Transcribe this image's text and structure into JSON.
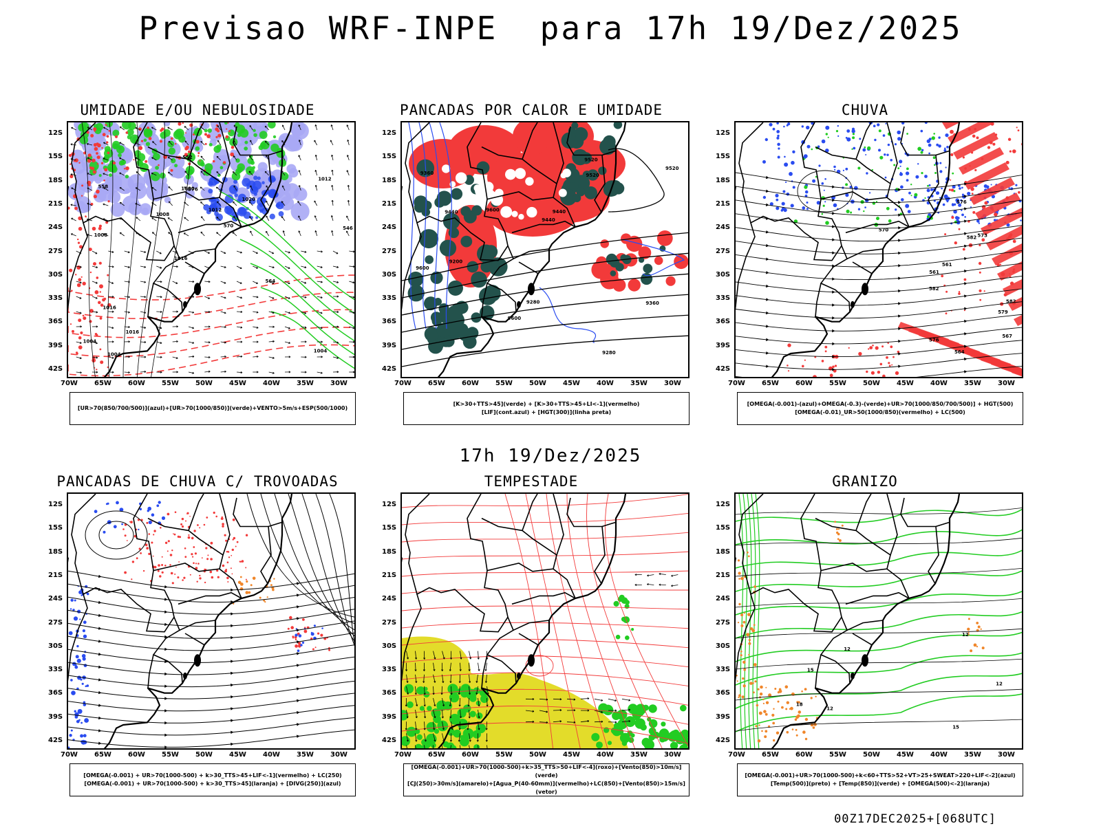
{
  "header": {
    "title": "Previsao WRF-INPE  para 17h 19/Dez/2025",
    "mid_title": "17h 19/Dez/2025",
    "footer": "00Z17DEC2025+[068UTC]"
  },
  "axes": {
    "lat_labels": [
      "12S",
      "15S",
      "18S",
      "21S",
      "24S",
      "27S",
      "30S",
      "33S",
      "36S",
      "39S",
      "42S"
    ],
    "lon_labels": [
      "70W",
      "65W",
      "60W",
      "55W",
      "50W",
      "45W",
      "40W",
      "35W",
      "30W"
    ]
  },
  "colors": {
    "red": "#f23a3a",
    "green": "#22cc22",
    "blue": "#2a4cf0",
    "lavender": "#a9a9f5",
    "darkteal": "#23524c",
    "yellow": "#e3dc2a",
    "orange": "#f0862a",
    "black": "#000000"
  },
  "panels": [
    {
      "id": "umidade",
      "title": "UMIDADE E/OU NEBULOSIDADE",
      "legend": [
        "[UR>70(850/700/500)](azul)+[UR>70(1000/850)](verde)+VENTO>5m/s+ESP(500/1000)"
      ],
      "contour_labels": [
        "1004",
        "1008",
        "1012",
        "1016",
        "1020",
        "1004",
        "1000",
        "1012",
        "1016",
        "1008",
        "1004",
        "1016",
        "576",
        "570",
        "564",
        "558",
        "552",
        "546"
      ]
    },
    {
      "id": "pancadas-calor",
      "title": "PANCADAS POR CALOR E UMIDADE",
      "legend": [
        "[K>30+TTS>45](verde) + [K>30+TTS>45+LI<-1](vermelho)",
        "[LIF](cont.azul) + [HGT(300)](linha preta)"
      ],
      "contour_labels": [
        "9600",
        "9600",
        "9600",
        "9520",
        "9520",
        "9520",
        "9440",
        "9440",
        "9440",
        "9360",
        "9360",
        "9280",
        "9280",
        "9200"
      ]
    },
    {
      "id": "chuva",
      "title": "CHUVA",
      "legend": [
        "[OMEGA(-0.001)-(azul)+OMEGA(-0.3)-(verde)+UR>70(1000/850/700/500)] + HGT(500)",
        "[OMEGA(-0.01)_UR>50(1000/850)(vermelho) + LC(500)"
      ],
      "contour_labels": [
        "582",
        "582",
        "582",
        "579",
        "576",
        "576",
        "573",
        "570",
        "567",
        "564",
        "561",
        "561"
      ]
    },
    {
      "id": "pancadas-trovoadas",
      "title": "PANCADAS DE CHUVA C/ TROVOADAS",
      "legend": [
        "[OMEGA(-0.001) + UR>70(1000-500) + k>30_TTS>45+LIF<-1](vermelho) + LC(250)",
        "[OMEGA(-0.001) + UR>70(1000-500) + k>30_TTS>45](laranja) + [DIVG(250)](azul)"
      ],
      "contour_labels": []
    },
    {
      "id": "tempestade",
      "title": "TEMPESTADE",
      "legend": [
        "[OMEGA(-0.001)+UR>70(1000-500)+k>35_TTS>50+LIF<-4](roxo)+[Vento(850)>10m/s](verde)",
        "[CJ(250)>30m/s](amarelo)+[Agua_P(40-60mm)](vermelho)+LC(850)+[Vento(850)>15m/s](vetor)"
      ],
      "contour_labels": []
    },
    {
      "id": "granizo",
      "title": "GRANIZO",
      "legend": [
        "[OMEGA(-0.001)+UR>70(1000-500)+k<60+TTS>52+VT>25+SWEAT>220+LIF<-2](azul)",
        "[Temp(500)](preto) + [Temp(850)](verde) + [OMEGA(500)<-2](laranja)"
      ],
      "contour_labels": [
        "12",
        "12",
        "12",
        "15",
        "15",
        "18",
        "12"
      ]
    }
  ]
}
